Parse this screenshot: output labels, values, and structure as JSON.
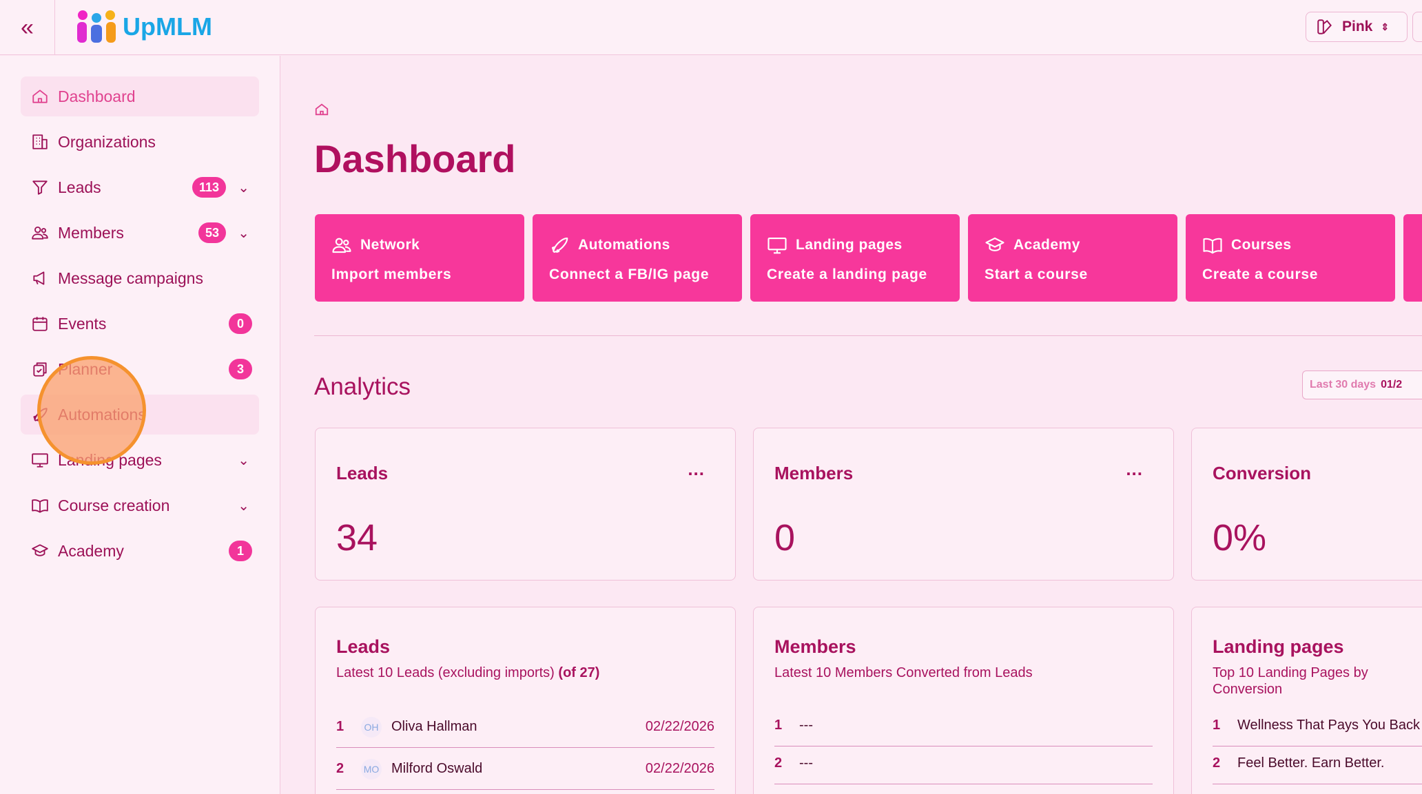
{
  "header": {
    "brand": "UpMLM",
    "theme": "Pink"
  },
  "sidebar": {
    "items": [
      {
        "label": "Dashboard",
        "icon": "home-icon"
      },
      {
        "label": "Organizations",
        "icon": "building-icon"
      },
      {
        "label": "Leads",
        "icon": "funnel-icon",
        "badge": "113",
        "expandable": true
      },
      {
        "label": "Members",
        "icon": "users-icon",
        "badge": "53",
        "expandable": true
      },
      {
        "label": "Message campaigns",
        "icon": "megaphone-icon"
      },
      {
        "label": "Events",
        "icon": "calendar-icon",
        "badge": "0"
      },
      {
        "label": "Planner",
        "icon": "clipboard-check-icon",
        "badge": "3"
      },
      {
        "label": "Automations",
        "icon": "rocket-icon"
      },
      {
        "label": "Landing pages",
        "icon": "monitor-icon",
        "expandable": true
      },
      {
        "label": "Course creation",
        "icon": "book-icon",
        "expandable": true
      },
      {
        "label": "Academy",
        "icon": "graduation-cap-icon",
        "badge": "1"
      }
    ]
  },
  "main": {
    "title": "Dashboard",
    "quick_actions": [
      {
        "title": "Network",
        "action": "Import members",
        "icon": "users-icon"
      },
      {
        "title": "Automations",
        "action": "Connect a FB/IG page",
        "icon": "rocket-icon"
      },
      {
        "title": "Landing pages",
        "action": "Create a landing page",
        "icon": "monitor-icon"
      },
      {
        "title": "Academy",
        "action": "Start a course",
        "icon": "graduation-cap-icon"
      },
      {
        "title": "Courses",
        "action": "Create a course",
        "icon": "book-icon"
      }
    ],
    "analytics": {
      "title": "Analytics",
      "range_label": "Last 30 days",
      "range_value": "01/2"
    },
    "stats": [
      {
        "label": "Leads",
        "value": "34",
        "menu": "..."
      },
      {
        "label": "Members",
        "value": "0",
        "menu": "..."
      },
      {
        "label": "Conversion",
        "value": "0%"
      }
    ],
    "lists": {
      "leads": {
        "title": "Leads",
        "subtitle": "Latest 10 Leads (excluding imports)",
        "count": "(of 27)",
        "rows": [
          {
            "n": "1",
            "initials": "OH",
            "name": "Oliva Hallman",
            "date": "02/22/2026"
          },
          {
            "n": "2",
            "initials": "MO",
            "name": "Milford Oswald",
            "date": "02/22/2026"
          }
        ]
      },
      "members": {
        "title": "Members",
        "subtitle": "Latest 10 Members Converted from Leads",
        "rows": [
          {
            "n": "1",
            "name": "---"
          },
          {
            "n": "2",
            "name": "---"
          }
        ]
      },
      "landing": {
        "title": "Landing pages",
        "subtitle": "Top 10 Landing Pages by Conversion",
        "rows": [
          {
            "n": "1",
            "name": "Wellness That Pays You Back"
          },
          {
            "n": "2",
            "name": "Feel Better. Earn Better."
          }
        ]
      }
    }
  },
  "colors": {
    "accent": "#f7379b",
    "text": "#a8125e",
    "background": "#fce8f3"
  }
}
